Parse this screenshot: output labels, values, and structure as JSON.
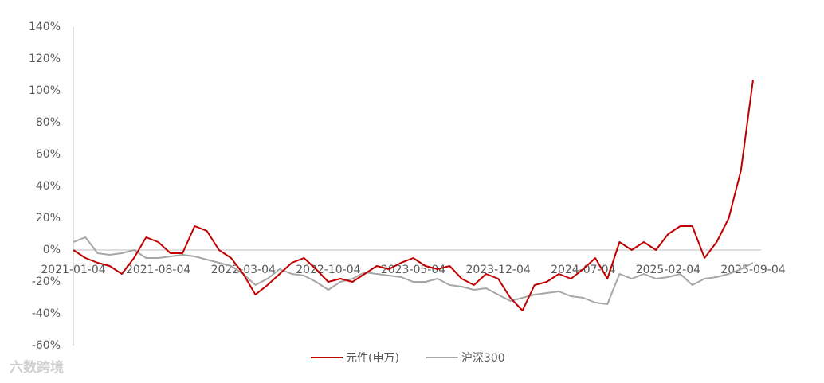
{
  "chart_data": {
    "type": "line",
    "categories": [
      "2021-01-04",
      null,
      null,
      null,
      null,
      null,
      null,
      "2021-08-04",
      null,
      null,
      null,
      null,
      null,
      null,
      "2022-03-04",
      null,
      null,
      null,
      null,
      null,
      null,
      "2022-10-04",
      null,
      null,
      null,
      null,
      null,
      null,
      "2023-05-04",
      null,
      null,
      null,
      null,
      null,
      null,
      "2023-12-04",
      null,
      null,
      null,
      null,
      null,
      null,
      "2024-07-04",
      null,
      null,
      null,
      null,
      null,
      null,
      "2025-02-04",
      null,
      null,
      null,
      null,
      null,
      null,
      "2025-09-04"
    ],
    "series": [
      {
        "name": "元件(申万)",
        "color": "#c00000",
        "values": [
          0,
          -5,
          -8,
          -10,
          -15,
          -5,
          8,
          5,
          -2,
          -2,
          15,
          12,
          0,
          -5,
          -15,
          -28,
          -22,
          -15,
          -8,
          -5,
          -12,
          -20,
          -18,
          -20,
          -15,
          -10,
          -12,
          -8,
          -5,
          -10,
          -12,
          -10,
          -18,
          -22,
          -15,
          -18,
          -30,
          -38,
          -22,
          -20,
          -15,
          -18,
          -12,
          -5,
          -18,
          5,
          0,
          5,
          0,
          10,
          15,
          15,
          -5,
          5,
          20,
          50,
          107
        ]
      },
      {
        "name": "沪深300",
        "color": "#a6a6a6",
        "values": [
          5,
          8,
          -2,
          -3,
          -2,
          0,
          -5,
          -5,
          -4,
          -3,
          -4,
          -6,
          -8,
          -10,
          -15,
          -22,
          -18,
          -12,
          -15,
          -16,
          -20,
          -25,
          -20,
          -18,
          -14,
          -15,
          -16,
          -17,
          -20,
          -20,
          -18,
          -22,
          -23,
          -25,
          -24,
          -28,
          -32,
          -30,
          -28,
          -27,
          -26,
          -29,
          -30,
          -33,
          -34,
          -15,
          -18,
          -15,
          -18,
          -17,
          -15,
          -22,
          -18,
          -17,
          -15,
          -12,
          -8
        ]
      }
    ],
    "ylim": [
      -60,
      140
    ],
    "yticks": [
      {
        "value": -60,
        "label": "-60%"
      },
      {
        "value": -40,
        "label": "-40%"
      },
      {
        "value": -20,
        "label": "-20%"
      },
      {
        "value": 0,
        "label": "0%"
      },
      {
        "value": 20,
        "label": "20%"
      },
      {
        "value": 40,
        "label": "40%"
      },
      {
        "value": 60,
        "label": "60%"
      },
      {
        "value": 80,
        "label": "80%"
      },
      {
        "value": 100,
        "label": "100%"
      },
      {
        "value": 120,
        "label": "120%"
      },
      {
        "value": 140,
        "label": "140%"
      }
    ],
    "legend": "bottom",
    "watermark": "六数跨境"
  }
}
